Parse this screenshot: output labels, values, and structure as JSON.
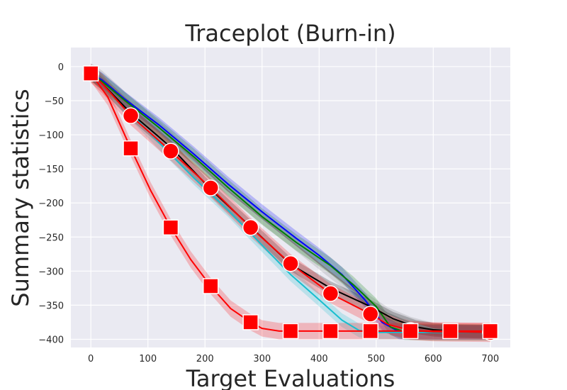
{
  "chart_data": {
    "type": "line",
    "title": "Traceplot (Burn-in)",
    "xlabel": "Target Evaluations",
    "ylabel": "Summary statistics",
    "xlim": [
      -35,
      735
    ],
    "ylim": [
      -412,
      28
    ],
    "xticks": [
      0,
      100,
      200,
      300,
      400,
      500,
      600,
      700
    ],
    "yticks": [
      0,
      -50,
      -100,
      -150,
      -200,
      -250,
      -300,
      -350,
      -400
    ],
    "grid": true,
    "background": "#eaeaf2",
    "series": [
      {
        "color": "#7f7f7f",
        "marker": "none",
        "band": 9,
        "points": [
          [
            0,
            2
          ],
          [
            20,
            -15
          ],
          [
            60,
            -46
          ],
          [
            120,
            -90
          ],
          [
            180,
            -135
          ],
          [
            240,
            -182
          ],
          [
            300,
            -222
          ],
          [
            360,
            -262
          ],
          [
            420,
            -302
          ],
          [
            480,
            -340
          ],
          [
            520,
            -362
          ],
          [
            560,
            -376
          ],
          [
            600,
            -385
          ],
          [
            640,
            -388
          ],
          [
            700,
            -389
          ]
        ]
      },
      {
        "color": "#0000ff",
        "marker": "none",
        "band": 11,
        "points": [
          [
            0,
            -10
          ],
          [
            20,
            -20
          ],
          [
            60,
            -48
          ],
          [
            120,
            -86
          ],
          [
            180,
            -128
          ],
          [
            240,
            -172
          ],
          [
            300,
            -213
          ],
          [
            360,
            -252
          ],
          [
            400,
            -277
          ],
          [
            440,
            -305
          ],
          [
            480,
            -342
          ],
          [
            510,
            -375
          ],
          [
            540,
            -389
          ],
          [
            600,
            -390
          ],
          [
            700,
            -390
          ]
        ]
      },
      {
        "color": "#008000",
        "marker": "none",
        "band": 12,
        "points": [
          [
            0,
            -10
          ],
          [
            20,
            -22
          ],
          [
            60,
            -50
          ],
          [
            120,
            -90
          ],
          [
            180,
            -132
          ],
          [
            240,
            -177
          ],
          [
            300,
            -220
          ],
          [
            360,
            -258
          ],
          [
            420,
            -292
          ],
          [
            460,
            -320
          ],
          [
            500,
            -352
          ],
          [
            525,
            -382
          ],
          [
            550,
            -389
          ],
          [
            600,
            -390
          ],
          [
            700,
            -390
          ]
        ]
      },
      {
        "color": "#17becf",
        "marker": "none",
        "band": 10,
        "points": [
          [
            0,
            -10
          ],
          [
            20,
            -25
          ],
          [
            60,
            -60
          ],
          [
            120,
            -112
          ],
          [
            180,
            -163
          ],
          [
            240,
            -210
          ],
          [
            300,
            -262
          ],
          [
            350,
            -305
          ],
          [
            400,
            -342
          ],
          [
            440,
            -372
          ],
          [
            470,
            -387
          ],
          [
            500,
            -390
          ],
          [
            600,
            -390
          ],
          [
            700,
            -390
          ]
        ]
      },
      {
        "color": "#000000",
        "marker": "none",
        "band": 10,
        "points": [
          [
            0,
            -10
          ],
          [
            20,
            -25
          ],
          [
            70,
            -68
          ],
          [
            140,
            -118
          ],
          [
            210,
            -180
          ],
          [
            280,
            -235
          ],
          [
            350,
            -290
          ],
          [
            420,
            -325
          ],
          [
            490,
            -352
          ],
          [
            530,
            -370
          ],
          [
            570,
            -382
          ],
          [
            600,
            -386
          ],
          [
            640,
            -388
          ],
          [
            700,
            -389
          ]
        ]
      },
      {
        "color": "#ff0000",
        "marker": "circle",
        "band": 14,
        "points": [
          [
            0,
            -10
          ],
          [
            20,
            -25
          ],
          [
            70,
            -72
          ],
          [
            140,
            -124
          ],
          [
            210,
            -178
          ],
          [
            280,
            -236
          ],
          [
            350,
            -289
          ],
          [
            420,
            -333
          ],
          [
            490,
            -363
          ],
          [
            520,
            -378
          ],
          [
            560,
            -387
          ],
          [
            600,
            -389
          ],
          [
            700,
            -390
          ]
        ]
      },
      {
        "color": "#ff0000",
        "marker": "square",
        "band": 12,
        "points": [
          [
            0,
            -10
          ],
          [
            30,
            -45
          ],
          [
            70,
            -120
          ],
          [
            105,
            -182
          ],
          [
            140,
            -236
          ],
          [
            175,
            -283
          ],
          [
            210,
            -322
          ],
          [
            245,
            -355
          ],
          [
            280,
            -375
          ],
          [
            300,
            -384
          ],
          [
            330,
            -388
          ],
          [
            350,
            -388
          ],
          [
            420,
            -388
          ],
          [
            490,
            -388
          ],
          [
            560,
            -388
          ],
          [
            630,
            -388
          ],
          [
            700,
            -388
          ]
        ]
      }
    ]
  }
}
